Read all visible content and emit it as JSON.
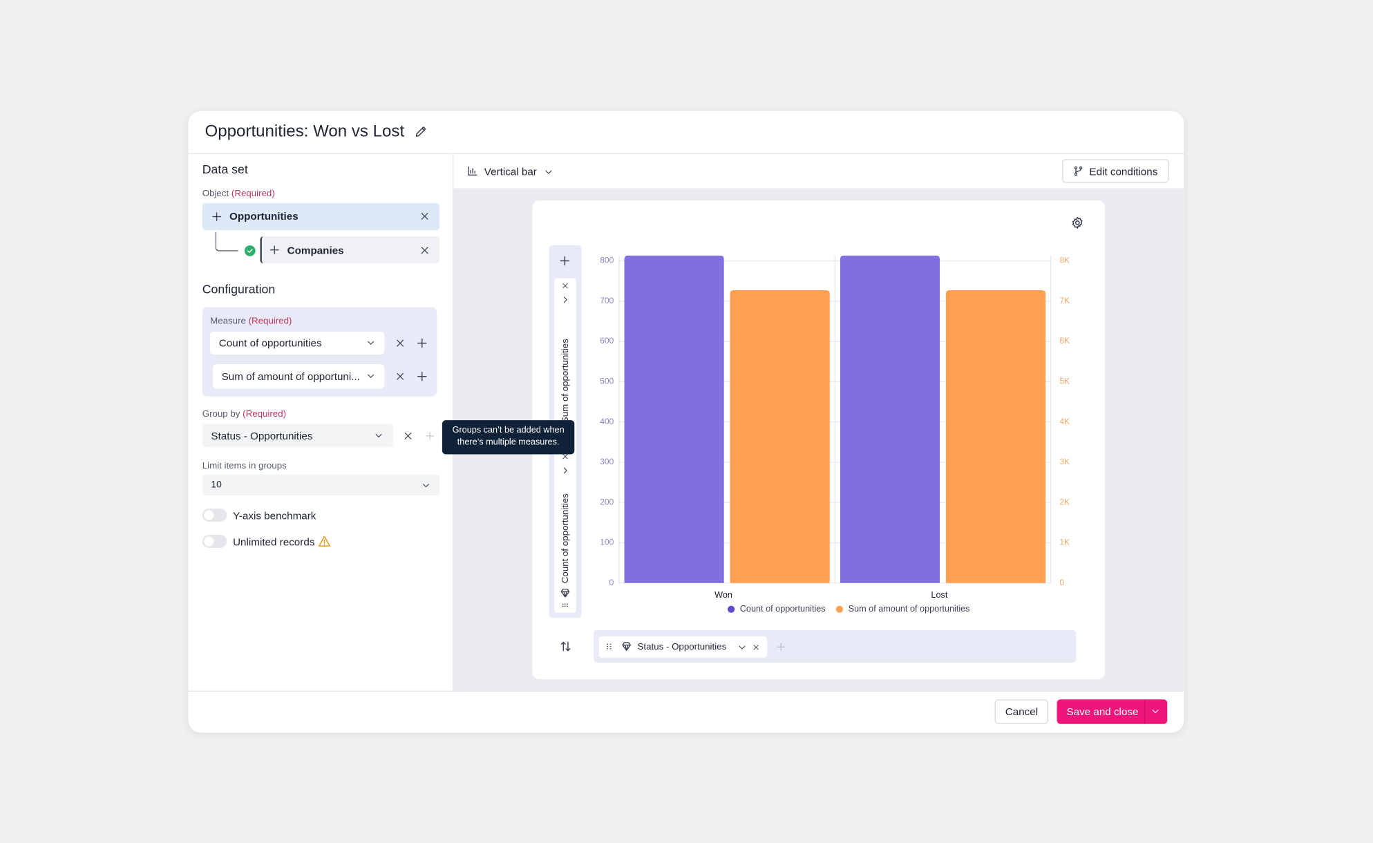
{
  "title": "Opportunities: Won vs Lost",
  "left_panel": {
    "data_set_heading": "Data set",
    "object_label": "Object",
    "required": "(Required)",
    "object": "Opportunities",
    "joined_object": "Companies",
    "configuration_heading": "Configuration",
    "measure_label": "Measure",
    "measures": [
      "Count of opportunities",
      "Sum of amount of opportuni..."
    ],
    "group_by_label": "Group by",
    "group_by": "Status - Opportunities",
    "tooltip": "Groups can’t be added when there’s multiple measures.",
    "limit_label": "Limit items in groups",
    "limit_value": "10",
    "toggles": [
      "Y-axis benchmark",
      "Unlimited records"
    ]
  },
  "toolbar": {
    "chart_type": "Vertical bar",
    "edit_conditions": "Edit conditions"
  },
  "chart_data": {
    "type": "bar",
    "categories": [
      "Won",
      "Lost"
    ],
    "series": [
      {
        "name": "Count of opportunities",
        "color": "#7f6fdf",
        "legend_color": "#5b4ccf",
        "values": [
          813,
          813
        ]
      },
      {
        "name": "Sum of amount of opportunities",
        "color": "#ff9f4f",
        "legend_color": "#ff9f4f",
        "values": [
          7270,
          7270
        ],
        "axis": "y2"
      }
    ],
    "y_label": "Count of opportunities",
    "y2_label": "Sum of opportunities",
    "ylim": [
      0,
      813
    ],
    "yticks": [
      0,
      100,
      200,
      300,
      400,
      500,
      600,
      700,
      800
    ],
    "y2lim": [
      0,
      8130
    ],
    "y2ticks": [
      0,
      {
        "value": 1000,
        "label": "1K"
      },
      {
        "value": 2000,
        "label": "2K"
      },
      {
        "value": 3000,
        "label": "3K"
      },
      {
        "value": 4000,
        "label": "4K"
      },
      {
        "value": 5000,
        "label": "5K"
      },
      {
        "value": 6000,
        "label": "6K"
      },
      {
        "value": 7000,
        "label": "7K"
      },
      {
        "value": 8000,
        "label": "8K"
      }
    ],
    "grid": true
  },
  "group_chip": "Status - Opportunities",
  "footer": {
    "cancel": "Cancel",
    "save": "Save and close"
  }
}
